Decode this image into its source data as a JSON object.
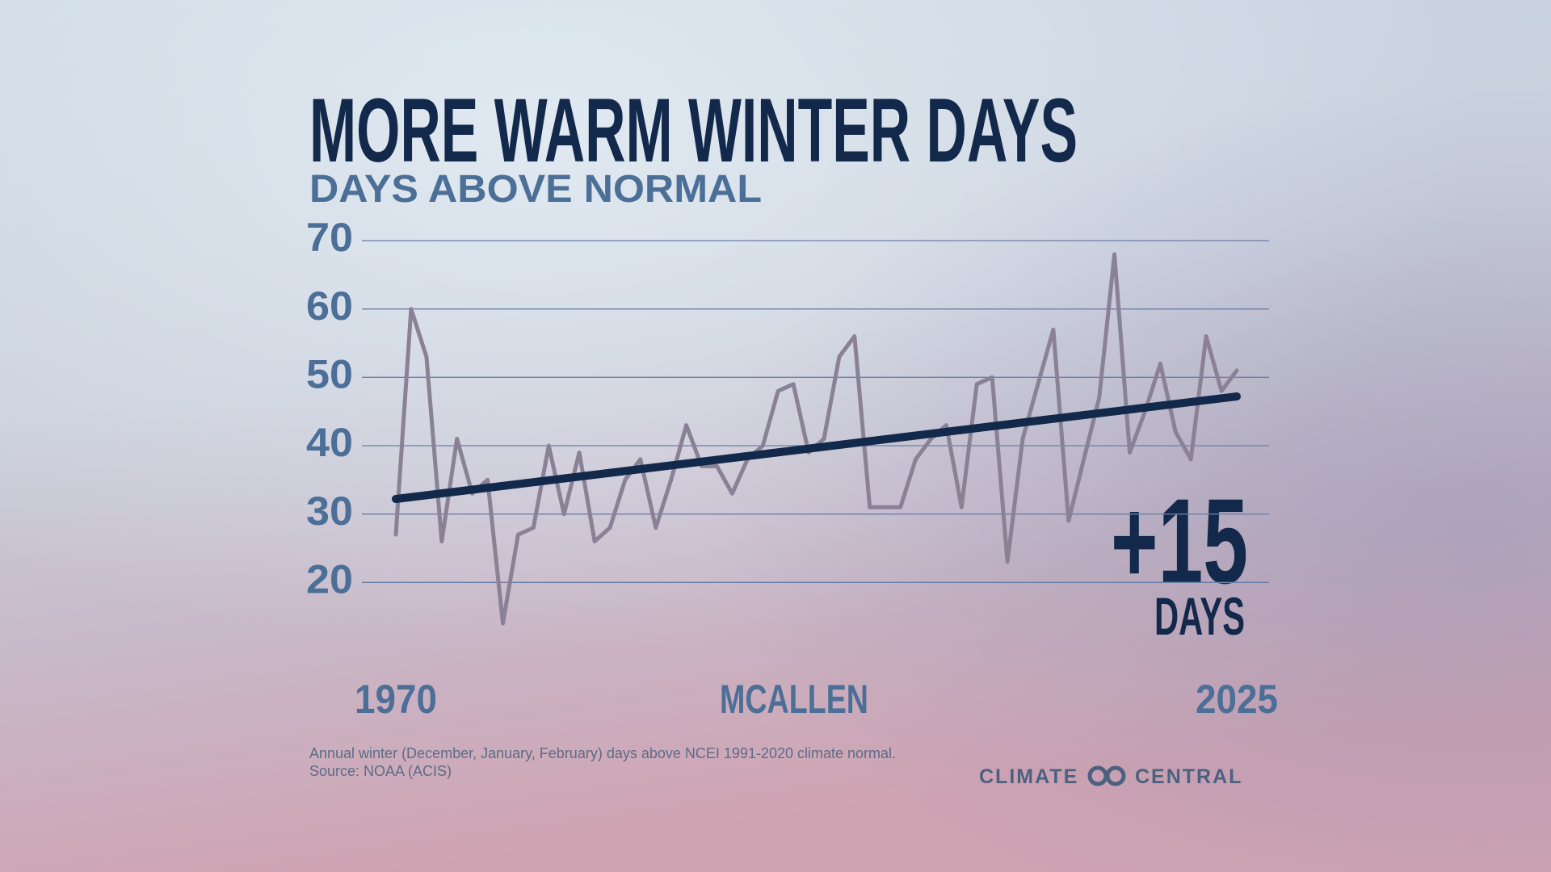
{
  "chart_data": {
    "type": "line",
    "title": "MORE WARM WINTER DAYS",
    "subtitle": "DAYS ABOVE NORMAL",
    "location": "MCALLEN",
    "annotation": {
      "value": "+15",
      "unit": "DAYS"
    },
    "footnote": [
      "Annual winter (December, January, February) days above NCEI 1991-2020 climate normal.",
      "Source: NOAA (ACIS)"
    ],
    "logo": [
      "CLIMATE",
      "CENTRAL"
    ],
    "x": [
      1970,
      1971,
      1972,
      1973,
      1974,
      1975,
      1976,
      1977,
      1978,
      1979,
      1980,
      1981,
      1982,
      1983,
      1984,
      1985,
      1986,
      1987,
      1988,
      1989,
      1990,
      1991,
      1992,
      1993,
      1994,
      1995,
      1996,
      1997,
      1998,
      1999,
      2000,
      2001,
      2002,
      2003,
      2004,
      2005,
      2006,
      2007,
      2008,
      2009,
      2010,
      2011,
      2012,
      2013,
      2014,
      2015,
      2016,
      2017,
      2018,
      2019,
      2020,
      2021,
      2022,
      2023,
      2024,
      2025
    ],
    "series": [
      {
        "color": "#8b8197",
        "values": [
          27,
          60,
          53,
          26,
          41,
          33,
          35,
          14,
          27,
          28,
          40,
          30,
          39,
          26,
          28,
          35,
          38,
          28,
          35,
          43,
          37,
          37,
          33,
          38,
          40,
          48,
          49,
          39,
          41,
          53,
          56,
          31,
          31,
          31,
          38,
          41,
          43,
          31,
          49,
          50,
          23,
          41,
          49,
          57,
          29,
          38,
          47,
          68,
          39,
          45,
          52,
          42,
          38,
          56,
          48,
          51
        ]
      },
      {
        "color": "#13294b",
        "x": [
          1970,
          2025
        ],
        "values": [
          32.2,
          47.2
        ]
      }
    ],
    "xlim": [
      1970,
      2025
    ],
    "xticks": [
      1970,
      2025
    ],
    "ylim": [
      10,
      70
    ],
    "yticks": [
      20,
      30,
      40,
      50,
      60,
      70
    ],
    "grid": true
  }
}
